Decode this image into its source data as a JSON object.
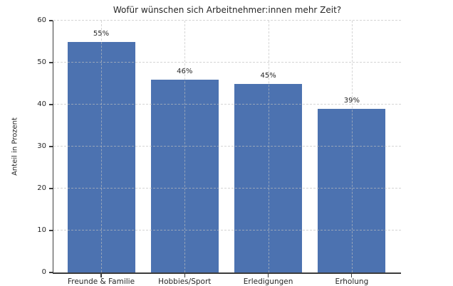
{
  "chart_data": {
    "type": "bar",
    "title": "Wofür wünschen sich Arbeitnehmer:innen mehr Zeit?",
    "xlabel": "",
    "ylabel": "Anteil in Prozent",
    "categories": [
      "Freunde & Familie",
      "Hobbies/Sport",
      "Erledigungen",
      "Erholung"
    ],
    "values": [
      55,
      46,
      45,
      39
    ],
    "value_labels": [
      "55%",
      "46%",
      "45%",
      "39%"
    ],
    "ylim": [
      0,
      60
    ],
    "yticks": [
      0,
      10,
      20,
      30,
      40,
      50,
      60
    ],
    "grid": "dashed light-gray, horizontal at yticks and vertical at category centers",
    "legend": "none",
    "bar_color": "#4c72b0",
    "axis_color": "#3c3c3c",
    "background_color": "#ffffff"
  }
}
